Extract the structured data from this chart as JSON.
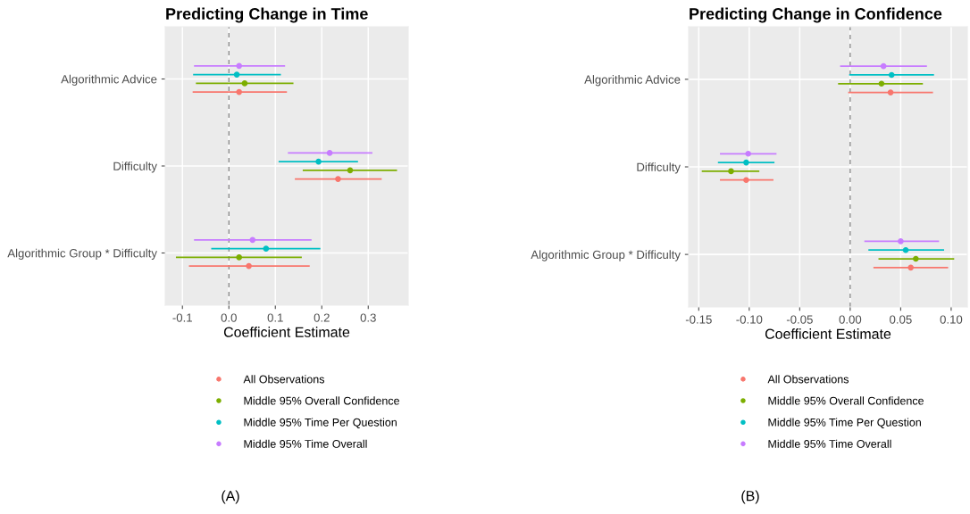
{
  "chart_data": [
    {
      "type": "scatter",
      "orientation": "horizontal",
      "title": "Predicting Change in Time",
      "xlabel": "Coefficient Estimate",
      "categories": [
        "Algorithmic Advice",
        "Difficulty",
        "Algorithmic Group * Difficulty"
      ],
      "series": [
        {
          "name": "All Observations",
          "color": "#f8766d",
          "values": [
            0.022,
            0.235,
            0.043
          ],
          "errors": [
            [
              -0.078,
              0.125
            ],
            [
              0.142,
              0.329
            ],
            [
              -0.086,
              0.174
            ]
          ]
        },
        {
          "name": "Middle 95% Overall Confidence",
          "color": "#7cae00",
          "values": [
            0.034,
            0.261,
            0.022
          ],
          "errors": [
            [
              -0.071,
              0.139
            ],
            [
              0.159,
              0.362
            ],
            [
              -0.114,
              0.157
            ]
          ]
        },
        {
          "name": "Middle 95% Time Per Question",
          "color": "#00bfc4",
          "values": [
            0.017,
            0.193,
            0.08
          ],
          "errors": [
            [
              -0.077,
              0.112
            ],
            [
              0.107,
              0.278
            ],
            [
              -0.038,
              0.197
            ]
          ]
        },
        {
          "name": "Middle 95% Time Overall",
          "color": "#c77cff",
          "values": [
            0.022,
            0.217,
            0.051
          ],
          "errors": [
            [
              -0.075,
              0.121
            ],
            [
              0.127,
              0.309
            ],
            [
              -0.075,
              0.178
            ]
          ]
        }
      ],
      "xlim": [
        -0.137,
        0.386
      ],
      "xticks": [
        {
          "value": -0.1,
          "label": "-0.1"
        },
        {
          "value": 0,
          "label": "0.0"
        },
        0.1,
        0.2,
        0.3
      ],
      "ref_lines": [
        {
          "axis": "x",
          "value": 0,
          "color": "#808080",
          "line_style": "dashed"
        }
      ],
      "marker": "circle",
      "grid": true,
      "legend": "bottom",
      "annotations": [
        "(A)"
      ]
    },
    {
      "type": "scatter",
      "orientation": "horizontal",
      "title": "Predicting Change in Confidence",
      "xlabel": "Coefficient Estimate",
      "categories": [
        "Algorithmic Advice",
        "Difficulty",
        "Algorithmic Group * Difficulty"
      ],
      "series": [
        {
          "name": "All Observations",
          "color": "#f8766d",
          "values": [
            0.04,
            -0.103,
            0.06
          ],
          "errors": [
            [
              -0.002,
              0.082
            ],
            [
              -0.129,
              -0.076
            ],
            [
              0.023,
              0.097
            ]
          ]
        },
        {
          "name": "Middle 95% Overall Confidence",
          "color": "#7cae00",
          "values": [
            0.031,
            -0.118,
            0.065
          ],
          "errors": [
            [
              -0.012,
              0.072
            ],
            [
              -0.147,
              -0.09
            ],
            [
              0.028,
              0.103
            ]
          ]
        },
        {
          "name": "Middle 95% Time Per Question",
          "color": "#00bfc4",
          "values": [
            0.041,
            -0.103,
            0.055
          ],
          "errors": [
            [
              -0.001,
              0.083
            ],
            [
              -0.131,
              -0.075
            ],
            [
              0.018,
              0.093
            ]
          ]
        },
        {
          "name": "Middle 95% Time Overall",
          "color": "#c77cff",
          "values": [
            0.033,
            -0.101,
            0.05
          ],
          "errors": [
            [
              -0.01,
              0.076
            ],
            [
              -0.129,
              -0.073
            ],
            [
              0.014,
              0.088
            ]
          ]
        }
      ],
      "xlim": [
        -0.16,
        0.116
      ],
      "xticks": [
        {
          "value": -0.15,
          "label": "-0.15"
        },
        {
          "value": -0.1,
          "label": "-0.10"
        },
        {
          "value": -0.05,
          "label": "-0.05"
        },
        {
          "value": 0,
          "label": "0.00"
        },
        {
          "value": 0.05,
          "label": "0.05"
        },
        {
          "value": 0.1,
          "label": "0.10"
        }
      ],
      "ref_lines": [
        {
          "axis": "x",
          "value": 0,
          "color": "#808080",
          "line_style": "dashed"
        }
      ],
      "marker": "circle",
      "grid": true,
      "legend": "bottom",
      "annotations": [
        "(B)"
      ]
    }
  ]
}
